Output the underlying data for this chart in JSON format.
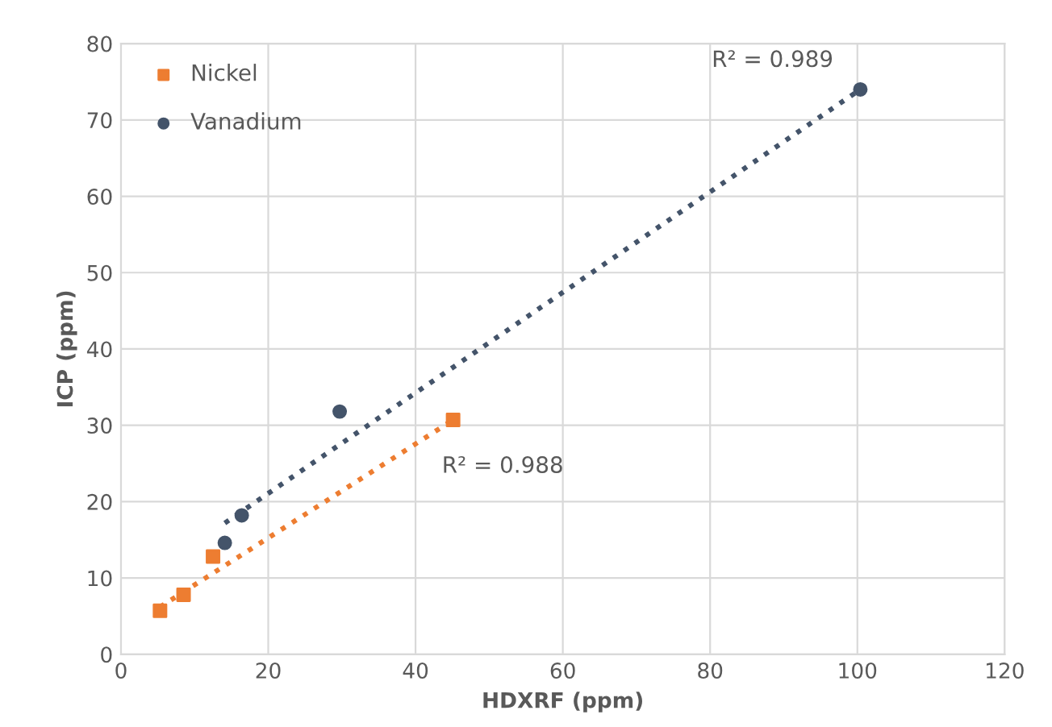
{
  "chart_data": {
    "type": "scatter",
    "xlabel": "HDXRF (ppm)",
    "ylabel": "ICP (ppm)",
    "series": [
      {
        "name": "Nickel",
        "marker": "square",
        "color": "#ed7d31",
        "x": [
          5.3,
          8.5,
          12.5,
          45.1
        ],
        "values": [
          5.7,
          7.8,
          12.8,
          30.7
        ]
      },
      {
        "name": "Vanadium",
        "marker": "circle",
        "color": "#44546a",
        "x": [
          14.1,
          16.4,
          29.7,
          100.4
        ],
        "values": [
          14.6,
          18.2,
          31.8,
          74.0
        ]
      },
      {
        "type": "line",
        "line_style": "dotted",
        "color": "#ed7d31",
        "x": [
          5.3,
          45.1
        ],
        "values": [
          6.2,
          30.7
        ]
      },
      {
        "type": "line",
        "line_style": "dotted",
        "color": "#44546a",
        "x": [
          14.1,
          100.4
        ],
        "values": [
          17.2,
          74.0
        ]
      }
    ],
    "annotations": [
      {
        "text": "R² = 0.989",
        "x": 100.4,
        "y": 74.0
      },
      {
        "text": "R² = 0.988",
        "x": 45.1,
        "y": 30.7
      }
    ],
    "xlim": [
      0,
      120
    ],
    "xticks": [
      0,
      20,
      40,
      60,
      80,
      100,
      120
    ],
    "ylim": [
      0,
      80
    ],
    "yticks": [
      0,
      10,
      20,
      30,
      40,
      50,
      60,
      70,
      80
    ],
    "grid": true,
    "legend": "top left"
  }
}
